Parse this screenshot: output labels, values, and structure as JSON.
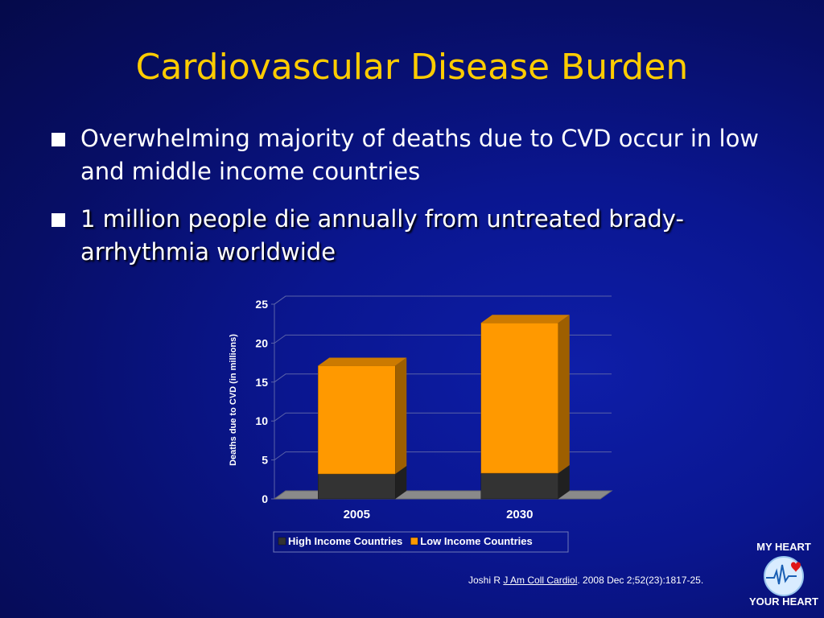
{
  "slide": {
    "title": "Cardiovascular Disease Burden",
    "bullets": [
      "Overwhelming majority of deaths due to CVD occur in low and middle income countries",
      "1 million people die annually from untreated brady-arrhythmia worldwide"
    ],
    "citation": {
      "prefix": "Joshi R ",
      "journal": "J Am Coll Cardiol",
      "suffix": ". 2008 Dec 2;52(23):1817-25."
    },
    "logo": {
      "top": "MY HEART",
      "bottom": "YOUR HEART"
    }
  },
  "colors": {
    "title": "#ffcc00",
    "high_income": "#333333",
    "low_income": "#ff9900"
  },
  "chart_data": {
    "type": "bar",
    "stacked": true,
    "three_d": true,
    "categories": [
      "2005",
      "2030"
    ],
    "series": [
      {
        "name": "High Income Countries",
        "values": [
          3.2,
          3.3
        ],
        "color": "#333333"
      },
      {
        "name": "Low Income Countries",
        "values": [
          13.9,
          19.3
        ],
        "color": "#ff9900"
      }
    ],
    "ylabel": "Deaths due to CVD (in millions)",
    "ylim": [
      0,
      25
    ],
    "yticks": [
      0,
      5,
      10,
      15,
      20,
      25
    ],
    "grid": true,
    "legend": "bottom"
  }
}
